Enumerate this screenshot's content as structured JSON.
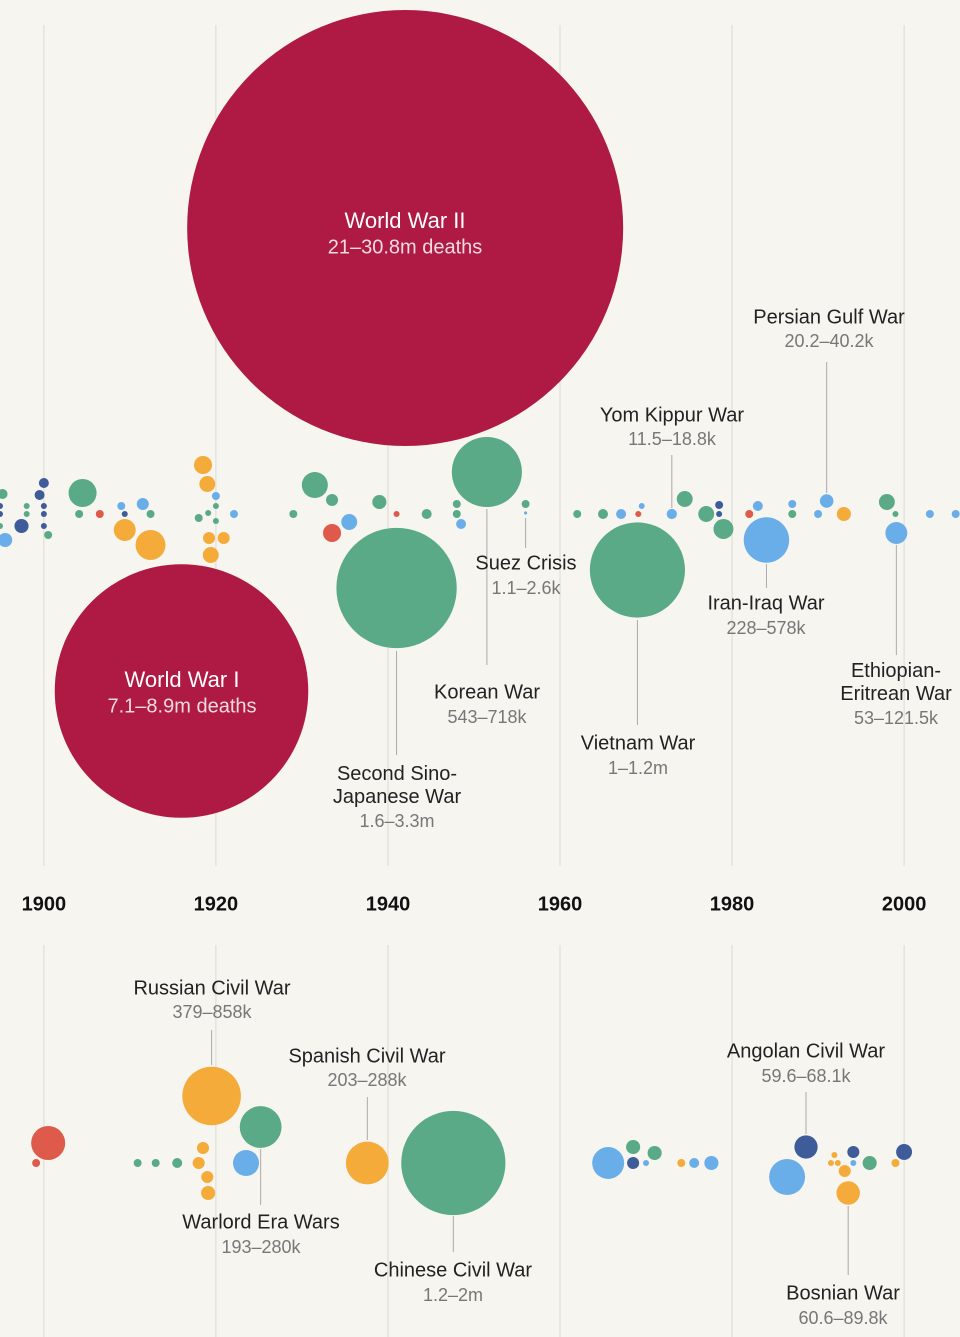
{
  "chart_data": [
    {
      "type": "bubble",
      "xlim": [
        1894.9,
        2006.5
      ],
      "xticks": [
        1900,
        1920,
        1940,
        1960,
        1980,
        2000
      ],
      "grid": true,
      "bubbles": [
        {
          "x": 1942.0,
          "value": 21000000,
          "color": "#ae1a43",
          "name": "World War II",
          "value_label": "21–30.8m deaths"
        },
        {
          "x": 1916.0,
          "value": 7100000,
          "color": "#ae1a43",
          "name": "World War I",
          "value_label": "7.1–8.9m deaths"
        },
        {
          "x": 1941.0,
          "value": 1600000,
          "color": "#5aaa88",
          "name": "Second Sino-Japanese War",
          "value_label": "1.6–3.3m"
        },
        {
          "x": 1951.5,
          "value": 543000,
          "color": "#5aaa88",
          "name": "Korean War",
          "value_label": "543–718k"
        },
        {
          "x": 1956.0,
          "value": 1100,
          "color": "#6aaee9",
          "name": "Suez Crisis",
          "value_label": "1.1–2.6k"
        },
        {
          "x": 1969.0,
          "value": 1000000,
          "color": "#5aaa88",
          "name": "Vietnam War",
          "value_label": "1–1.2m"
        },
        {
          "x": 1973.0,
          "value": 11500,
          "color": "#6aaee9",
          "name": "Yom Kippur War",
          "value_label": "11.5–18.8k"
        },
        {
          "x": 1991.0,
          "value": 20200,
          "color": "#6aaee9",
          "name": "Persian Gulf War",
          "value_label": "20.2–40.2k"
        },
        {
          "x": 1984.0,
          "value": 228000,
          "color": "#6aaee9",
          "name": "Iran-Iraq War",
          "value_label": "228–578k"
        },
        {
          "x": 1999.1,
          "value": 53000,
          "color": "#6aaee9",
          "name": "Ethiopian-Eritrean War",
          "value_label": "53–121.5k"
        },
        {
          "x": 1895.2,
          "value": 11000,
          "color": "#5aaa88"
        },
        {
          "x": 1894.9,
          "value": 4000,
          "color": "#3e5c99"
        },
        {
          "x": 1894.9,
          "value": 4000,
          "color": "#3e5c99"
        },
        {
          "x": 1894.9,
          "value": 4000,
          "color": "#5aaa88"
        },
        {
          "x": 1895.5,
          "value": 22000,
          "color": "#6aaee9"
        },
        {
          "x": 1897.4,
          "value": 22000,
          "color": "#3e5c99"
        },
        {
          "x": 1898.0,
          "value": 4000,
          "color": "#5aaa88"
        },
        {
          "x": 1898.0,
          "value": 4000,
          "color": "#5aaa88"
        },
        {
          "x": 1900.0,
          "value": 11000,
          "color": "#3e5c99"
        },
        {
          "x": 1899.5,
          "value": 11000,
          "color": "#3e5c99"
        },
        {
          "x": 1900.0,
          "value": 4000,
          "color": "#3e5c99"
        },
        {
          "x": 1900.0,
          "value": 4000,
          "color": "#3e5c99"
        },
        {
          "x": 1900.0,
          "value": 4000,
          "color": "#3e5c99"
        },
        {
          "x": 1900.5,
          "value": 7000,
          "color": "#5aaa88"
        },
        {
          "x": 1904.5,
          "value": 87000,
          "color": "#5aaa88"
        },
        {
          "x": 1904.1,
          "value": 7000,
          "color": "#5aaa88"
        },
        {
          "x": 1906.5,
          "value": 7000,
          "color": "#de5a4a"
        },
        {
          "x": 1909.0,
          "value": 7000,
          "color": "#6aaee9"
        },
        {
          "x": 1909.4,
          "value": 4000,
          "color": "#3e5c99"
        },
        {
          "x": 1909.4,
          "value": 53000,
          "color": "#f4ab3a"
        },
        {
          "x": 1911.5,
          "value": 16000,
          "color": "#6aaee9"
        },
        {
          "x": 1912.4,
          "value": 7000,
          "color": "#5aaa88"
        },
        {
          "x": 1912.4,
          "value": 99000,
          "color": "#f4ab3a"
        },
        {
          "x": 1918.5,
          "value": 36000,
          "color": "#f4ab3a"
        },
        {
          "x": 1919.0,
          "value": 28000,
          "color": "#f4ab3a"
        },
        {
          "x": 1920.0,
          "value": 7000,
          "color": "#6aaee9"
        },
        {
          "x": 1918.0,
          "value": 7000,
          "color": "#5aaa88"
        },
        {
          "x": 1919.1,
          "value": 4000,
          "color": "#5aaa88"
        },
        {
          "x": 1920.0,
          "value": 4000,
          "color": "#5aaa88"
        },
        {
          "x": 1920.0,
          "value": 4000,
          "color": "#5aaa88"
        },
        {
          "x": 1919.2,
          "value": 16000,
          "color": "#f4ab3a"
        },
        {
          "x": 1920.9,
          "value": 16000,
          "color": "#f4ab3a"
        },
        {
          "x": 1919.4,
          "value": 28000,
          "color": "#f4ab3a"
        },
        {
          "x": 1922.1,
          "value": 7000,
          "color": "#6aaee9"
        },
        {
          "x": 1929.0,
          "value": 7000,
          "color": "#5aaa88"
        },
        {
          "x": 1931.5,
          "value": 75000,
          "color": "#5aaa88"
        },
        {
          "x": 1933.5,
          "value": 16000,
          "color": "#5aaa88"
        },
        {
          "x": 1933.5,
          "value": 36000,
          "color": "#de5a4a"
        },
        {
          "x": 1935.5,
          "value": 28000,
          "color": "#6aaee9"
        },
        {
          "x": 1939.0,
          "value": 22000,
          "color": "#5aaa88"
        },
        {
          "x": 1941.0,
          "value": 4000,
          "color": "#de5a4a"
        },
        {
          "x": 1944.5,
          "value": 11000,
          "color": "#5aaa88"
        },
        {
          "x": 1948.0,
          "value": 7000,
          "color": "#5aaa88"
        },
        {
          "x": 1948.0,
          "value": 7000,
          "color": "#5aaa88"
        },
        {
          "x": 1948.5,
          "value": 11000,
          "color": "#6aaee9"
        },
        {
          "x": 1956.0,
          "value": 7000,
          "color": "#5aaa88"
        },
        {
          "x": 1962.0,
          "value": 7000,
          "color": "#5aaa88"
        },
        {
          "x": 1965.0,
          "value": 11000,
          "color": "#5aaa88"
        },
        {
          "x": 1967.1,
          "value": 11000,
          "color": "#6aaee9"
        },
        {
          "x": 1969.1,
          "value": 4000,
          "color": "#de5a4a"
        },
        {
          "x": 1969.5,
          "value": 4000,
          "color": "#6aaee9"
        },
        {
          "x": 1974.5,
          "value": 28000,
          "color": "#5aaa88"
        },
        {
          "x": 1977.0,
          "value": 28000,
          "color": "#5aaa88"
        },
        {
          "x": 1978.5,
          "value": 7000,
          "color": "#3e5c99"
        },
        {
          "x": 1978.5,
          "value": 4000,
          "color": "#3e5c99"
        },
        {
          "x": 1979.0,
          "value": 44000,
          "color": "#5aaa88"
        },
        {
          "x": 1982.0,
          "value": 7000,
          "color": "#de5a4a"
        },
        {
          "x": 1983.0,
          "value": 11000,
          "color": "#6aaee9"
        },
        {
          "x": 1987.0,
          "value": 7000,
          "color": "#5aaa88"
        },
        {
          "x": 1987.0,
          "value": 7000,
          "color": "#6aaee9"
        },
        {
          "x": 1990.0,
          "value": 7000,
          "color": "#6aaee9"
        },
        {
          "x": 1993.0,
          "value": 22000,
          "color": "#f4ab3a"
        },
        {
          "x": 1998.0,
          "value": 28000,
          "color": "#5aaa88"
        },
        {
          "x": 1999.0,
          "value": 4000,
          "color": "#5aaa88"
        },
        {
          "x": 2003.0,
          "value": 7000,
          "color": "#6aaee9"
        },
        {
          "x": 2006.0,
          "value": 7000,
          "color": "#6aaee9"
        }
      ]
    },
    {
      "type": "bubble",
      "xlim": [
        1894.9,
        2006.5
      ],
      "bubbles": [
        {
          "x": 1919.5,
          "value": 379000,
          "color": "#f4ab3a",
          "name": "Russian Civil War",
          "value_label": "379–858k"
        },
        {
          "x": 1937.6,
          "value": 203000,
          "color": "#f4ab3a",
          "name": "Spanish Civil War",
          "value_label": "203–288k"
        },
        {
          "x": 1925.2,
          "value": 193000,
          "color": "#5aaa88",
          "name": "Warlord Era Wars",
          "value_label": "193–280k"
        },
        {
          "x": 1947.6,
          "value": 1200000,
          "color": "#5aaa88",
          "name": "Chinese Civil War",
          "value_label": "1.2–2m"
        },
        {
          "x": 1988.6,
          "value": 59600,
          "color": "#3e5c99",
          "name": "Angolan Civil War",
          "value_label": "59.6–68.1k"
        },
        {
          "x": 1993.5,
          "value": 60600,
          "color": "#f4ab3a",
          "name": "Bosnian War",
          "value_label": "60.6–89.8k"
        },
        {
          "x": 1900.5,
          "value": 128000,
          "color": "#de5a4a"
        },
        {
          "x": 1899.1,
          "value": 7000,
          "color": "#de5a4a"
        },
        {
          "x": 1910.9,
          "value": 7000,
          "color": "#5aaa88"
        },
        {
          "x": 1913.0,
          "value": 7000,
          "color": "#5aaa88"
        },
        {
          "x": 1915.5,
          "value": 11000,
          "color": "#5aaa88"
        },
        {
          "x": 1918.5,
          "value": 16000,
          "color": "#f4ab3a"
        },
        {
          "x": 1918.0,
          "value": 16000,
          "color": "#f4ab3a"
        },
        {
          "x": 1919.0,
          "value": 16000,
          "color": "#f4ab3a"
        },
        {
          "x": 1919.1,
          "value": 22000,
          "color": "#f4ab3a"
        },
        {
          "x": 1923.5,
          "value": 75000,
          "color": "#6aaee9"
        },
        {
          "x": 1965.6,
          "value": 113000,
          "color": "#6aaee9"
        },
        {
          "x": 1968.5,
          "value": 22000,
          "color": "#5aaa88"
        },
        {
          "x": 1968.5,
          "value": 16000,
          "color": "#3e5c99"
        },
        {
          "x": 1970.0,
          "value": 4000,
          "color": "#6aaee9"
        },
        {
          "x": 1971.0,
          "value": 22000,
          "color": "#5aaa88"
        },
        {
          "x": 1974.1,
          "value": 7000,
          "color": "#f4ab3a"
        },
        {
          "x": 1975.6,
          "value": 11000,
          "color": "#6aaee9"
        },
        {
          "x": 1977.6,
          "value": 22000,
          "color": "#6aaee9"
        },
        {
          "x": 1986.4,
          "value": 143000,
          "color": "#6aaee9"
        },
        {
          "x": 1991.9,
          "value": 4000,
          "color": "#f4ab3a"
        },
        {
          "x": 1991.5,
          "value": 4000,
          "color": "#f4ab3a"
        },
        {
          "x": 1992.3,
          "value": 4000,
          "color": "#f4ab3a"
        },
        {
          "x": 1993.1,
          "value": 16000,
          "color": "#f4ab3a"
        },
        {
          "x": 1994.1,
          "value": 16000,
          "color": "#3e5c99"
        },
        {
          "x": 1994.1,
          "value": 4000,
          "color": "#6aaee9"
        },
        {
          "x": 1996.0,
          "value": 22000,
          "color": "#5aaa88"
        },
        {
          "x": 1999.0,
          "value": 7000,
          "color": "#f4ab3a"
        },
        {
          "x": 2000.0,
          "value": 28000,
          "color": "#3e5c99"
        }
      ]
    }
  ]
}
